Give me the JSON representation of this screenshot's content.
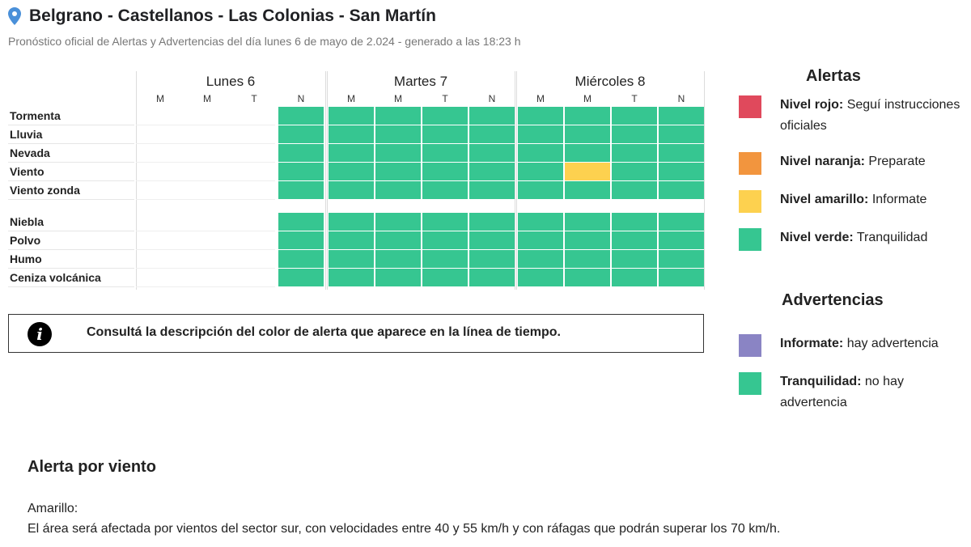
{
  "header": {
    "title": "Belgrano - Castellanos - Las Colonias - San Martín",
    "subtitle": "Pronóstico oficial de Alertas y Advertencias del día lunes 6 de mayo de 2.024 - generado a las 18:23 h",
    "location_icon": "map-pin-icon"
  },
  "colors": {
    "green": "#36c691",
    "yellow": "#fdd14f",
    "orange": "#f2953e",
    "red": "#e0495c",
    "purple": "#8a84c4"
  },
  "timeline": {
    "days": [
      {
        "label": "Lunes 6",
        "periods": [
          "M",
          "M",
          "T",
          "N"
        ]
      },
      {
        "label": "Martes 7",
        "periods": [
          "M",
          "M",
          "T",
          "N"
        ]
      },
      {
        "label": "Miércoles 8",
        "periods": [
          "M",
          "M",
          "T",
          "N"
        ]
      }
    ],
    "alert_rows": [
      {
        "label": "Tormenta",
        "levels": [
          null,
          null,
          null,
          "green",
          "green",
          "green",
          "green",
          "green",
          "green",
          "green",
          "green",
          "green"
        ]
      },
      {
        "label": "Lluvia",
        "levels": [
          null,
          null,
          null,
          "green",
          "green",
          "green",
          "green",
          "green",
          "green",
          "green",
          "green",
          "green"
        ]
      },
      {
        "label": "Nevada",
        "levels": [
          null,
          null,
          null,
          "green",
          "green",
          "green",
          "green",
          "green",
          "green",
          "green",
          "green",
          "green"
        ]
      },
      {
        "label": "Viento",
        "levels": [
          null,
          null,
          null,
          "green",
          "green",
          "green",
          "green",
          "green",
          "green",
          "yellow",
          "green",
          "green"
        ]
      },
      {
        "label": "Viento zonda",
        "levels": [
          null,
          null,
          null,
          "green",
          "green",
          "green",
          "green",
          "green",
          "green",
          "green",
          "green",
          "green"
        ]
      }
    ],
    "warning_rows": [
      {
        "label": "Niebla",
        "levels": [
          null,
          null,
          null,
          "green",
          "green",
          "green",
          "green",
          "green",
          "green",
          "green",
          "green",
          "green"
        ]
      },
      {
        "label": "Polvo",
        "levels": [
          null,
          null,
          null,
          "green",
          "green",
          "green",
          "green",
          "green",
          "green",
          "green",
          "green",
          "green"
        ]
      },
      {
        "label": "Humo",
        "levels": [
          null,
          null,
          null,
          "green",
          "green",
          "green",
          "green",
          "green",
          "green",
          "green",
          "green",
          "green"
        ]
      },
      {
        "label": "Ceniza volcánica",
        "levels": [
          null,
          null,
          null,
          "green",
          "green",
          "green",
          "green",
          "green",
          "green",
          "green",
          "green",
          "green"
        ]
      }
    ]
  },
  "info_box": {
    "icon": "info-icon",
    "icon_glyph": "i",
    "text": "Consultá la descripción del color de alerta que aparece en la línea de tiempo."
  },
  "legend": {
    "alerts_title": "Alertas",
    "alerts": [
      {
        "name": "Nivel rojo:",
        "desc": "Seguí instrucciones oficiales",
        "color": "#e0495c"
      },
      {
        "name": "Nivel naranja:",
        "desc": "Preparate",
        "color": "#f2953e"
      },
      {
        "name": "Nivel amarillo:",
        "desc": "Informate",
        "color": "#fdd14f"
      },
      {
        "name": "Nivel verde:",
        "desc": "Tranquilidad",
        "color": "#36c691"
      }
    ],
    "warnings_title": "Advertencias",
    "warnings": [
      {
        "name": "Informate:",
        "desc": "hay advertencia",
        "color": "#8a84c4"
      },
      {
        "name": "Tranquilidad:",
        "desc": "no hay advertencia",
        "color": "#36c691"
      }
    ]
  },
  "section": {
    "title": "Alerta por viento",
    "level": "Amarillo:",
    "description": "El área será afectada por vientos del sector sur, con velocidades entre 40 y 55 km/h y con ráfagas que podrán superar los 70 km/h."
  }
}
